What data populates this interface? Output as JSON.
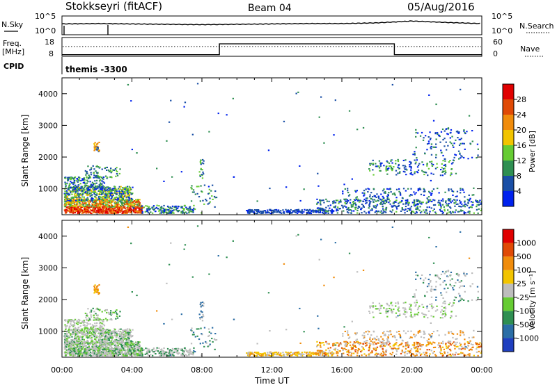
{
  "header": {
    "station": "Stokkseyri (fitACF)",
    "beam": "Beam 04",
    "date": "05/Aug/2016"
  },
  "noise_panel": {
    "left_label": "N.Sky",
    "right_label": "N.Search",
    "left_ticks": [
      "10^5",
      "10^0"
    ],
    "right_ticks": [
      "10^5",
      "10^0"
    ]
  },
  "freq_panel": {
    "left_label_1": "Freq.",
    "left_label_2": "[MHz]",
    "right_label": "Nave",
    "left_ticks": [
      "18",
      "8"
    ],
    "right_ticks": [
      "60",
      "0"
    ]
  },
  "cpid_panel": {
    "label": "CPID",
    "program": "themis -3300"
  },
  "power_panel": {
    "ylabel": "Slant Range [km]",
    "yticks": [
      "4000",
      "3000",
      "2000",
      "1000"
    ],
    "colorbar_label": "Power [dB]",
    "colorbar_ticks": [
      "28",
      "24",
      "20",
      "16",
      "12",
      "8",
      "4"
    ],
    "colors": [
      "#0022ee",
      "#1a4fa6",
      "#2f8f52",
      "#66cc33",
      "#f2c400",
      "#f08c0c",
      "#e04a06",
      "#e00000"
    ]
  },
  "velocity_panel": {
    "ylabel": "Slant Range [km]",
    "yticks": [
      "4000",
      "3000",
      "2000",
      "1000"
    ],
    "colorbar_label": "Velocity [m s⁻¹]",
    "colorbar_ticks": [
      "1000",
      "500",
      "100",
      "25",
      "-25",
      "-100",
      "-500",
      "-1000"
    ],
    "colors": [
      "#1f3fbf",
      "#2b6ea6",
      "#2f8f52",
      "#66cc33",
      "#bdbdbd",
      "#f2c400",
      "#f08c0c",
      "#e04a06",
      "#e00000"
    ]
  },
  "x_axis": {
    "ticks": [
      "00:00",
      "04:00",
      "08:00",
      "12:00",
      "16:00",
      "20:00",
      "00:00"
    ],
    "label": "Time UT"
  },
  "chart_data": [
    {
      "type": "line",
      "name": "noise",
      "xlim": [
        0,
        24
      ],
      "series": [
        {
          "name": "N.Sky",
          "x": [
            0,
            2,
            4,
            6,
            8,
            10,
            12,
            14,
            16,
            18,
            20,
            22,
            24
          ],
          "y": [
            2.8,
            2.9,
            2.8,
            2.7,
            2.6,
            2.7,
            2.8,
            2.9,
            2.9,
            3.1,
            3.6,
            3.2,
            2.9
          ]
        }
      ]
    },
    {
      "type": "line",
      "name": "frequency",
      "ylim": [
        8,
        18
      ],
      "series": [
        {
          "name": "Freq.",
          "x": [
            0,
            9,
            9,
            19,
            19,
            24
          ],
          "y": [
            8.5,
            8.5,
            14.5,
            14.5,
            8.5,
            8.5
          ]
        }
      ]
    },
    {
      "type": "heatmap",
      "name": "power",
      "ylabel": "Slant Range [km]",
      "xlabel": "Time UT",
      "ylim": [
        180,
        4500
      ],
      "xlim": [
        0,
        24
      ],
      "colorbar": {
        "label": "Power [dB]",
        "range": [
          0,
          32
        ]
      }
    },
    {
      "type": "heatmap",
      "name": "velocity",
      "ylabel": "Slant Range [km]",
      "xlabel": "Time UT",
      "ylim": [
        180,
        4500
      ],
      "xlim": [
        0,
        24
      ],
      "colorbar": {
        "label": "Velocity [m s⁻¹]",
        "range": [
          -1000,
          1000
        ]
      }
    }
  ]
}
